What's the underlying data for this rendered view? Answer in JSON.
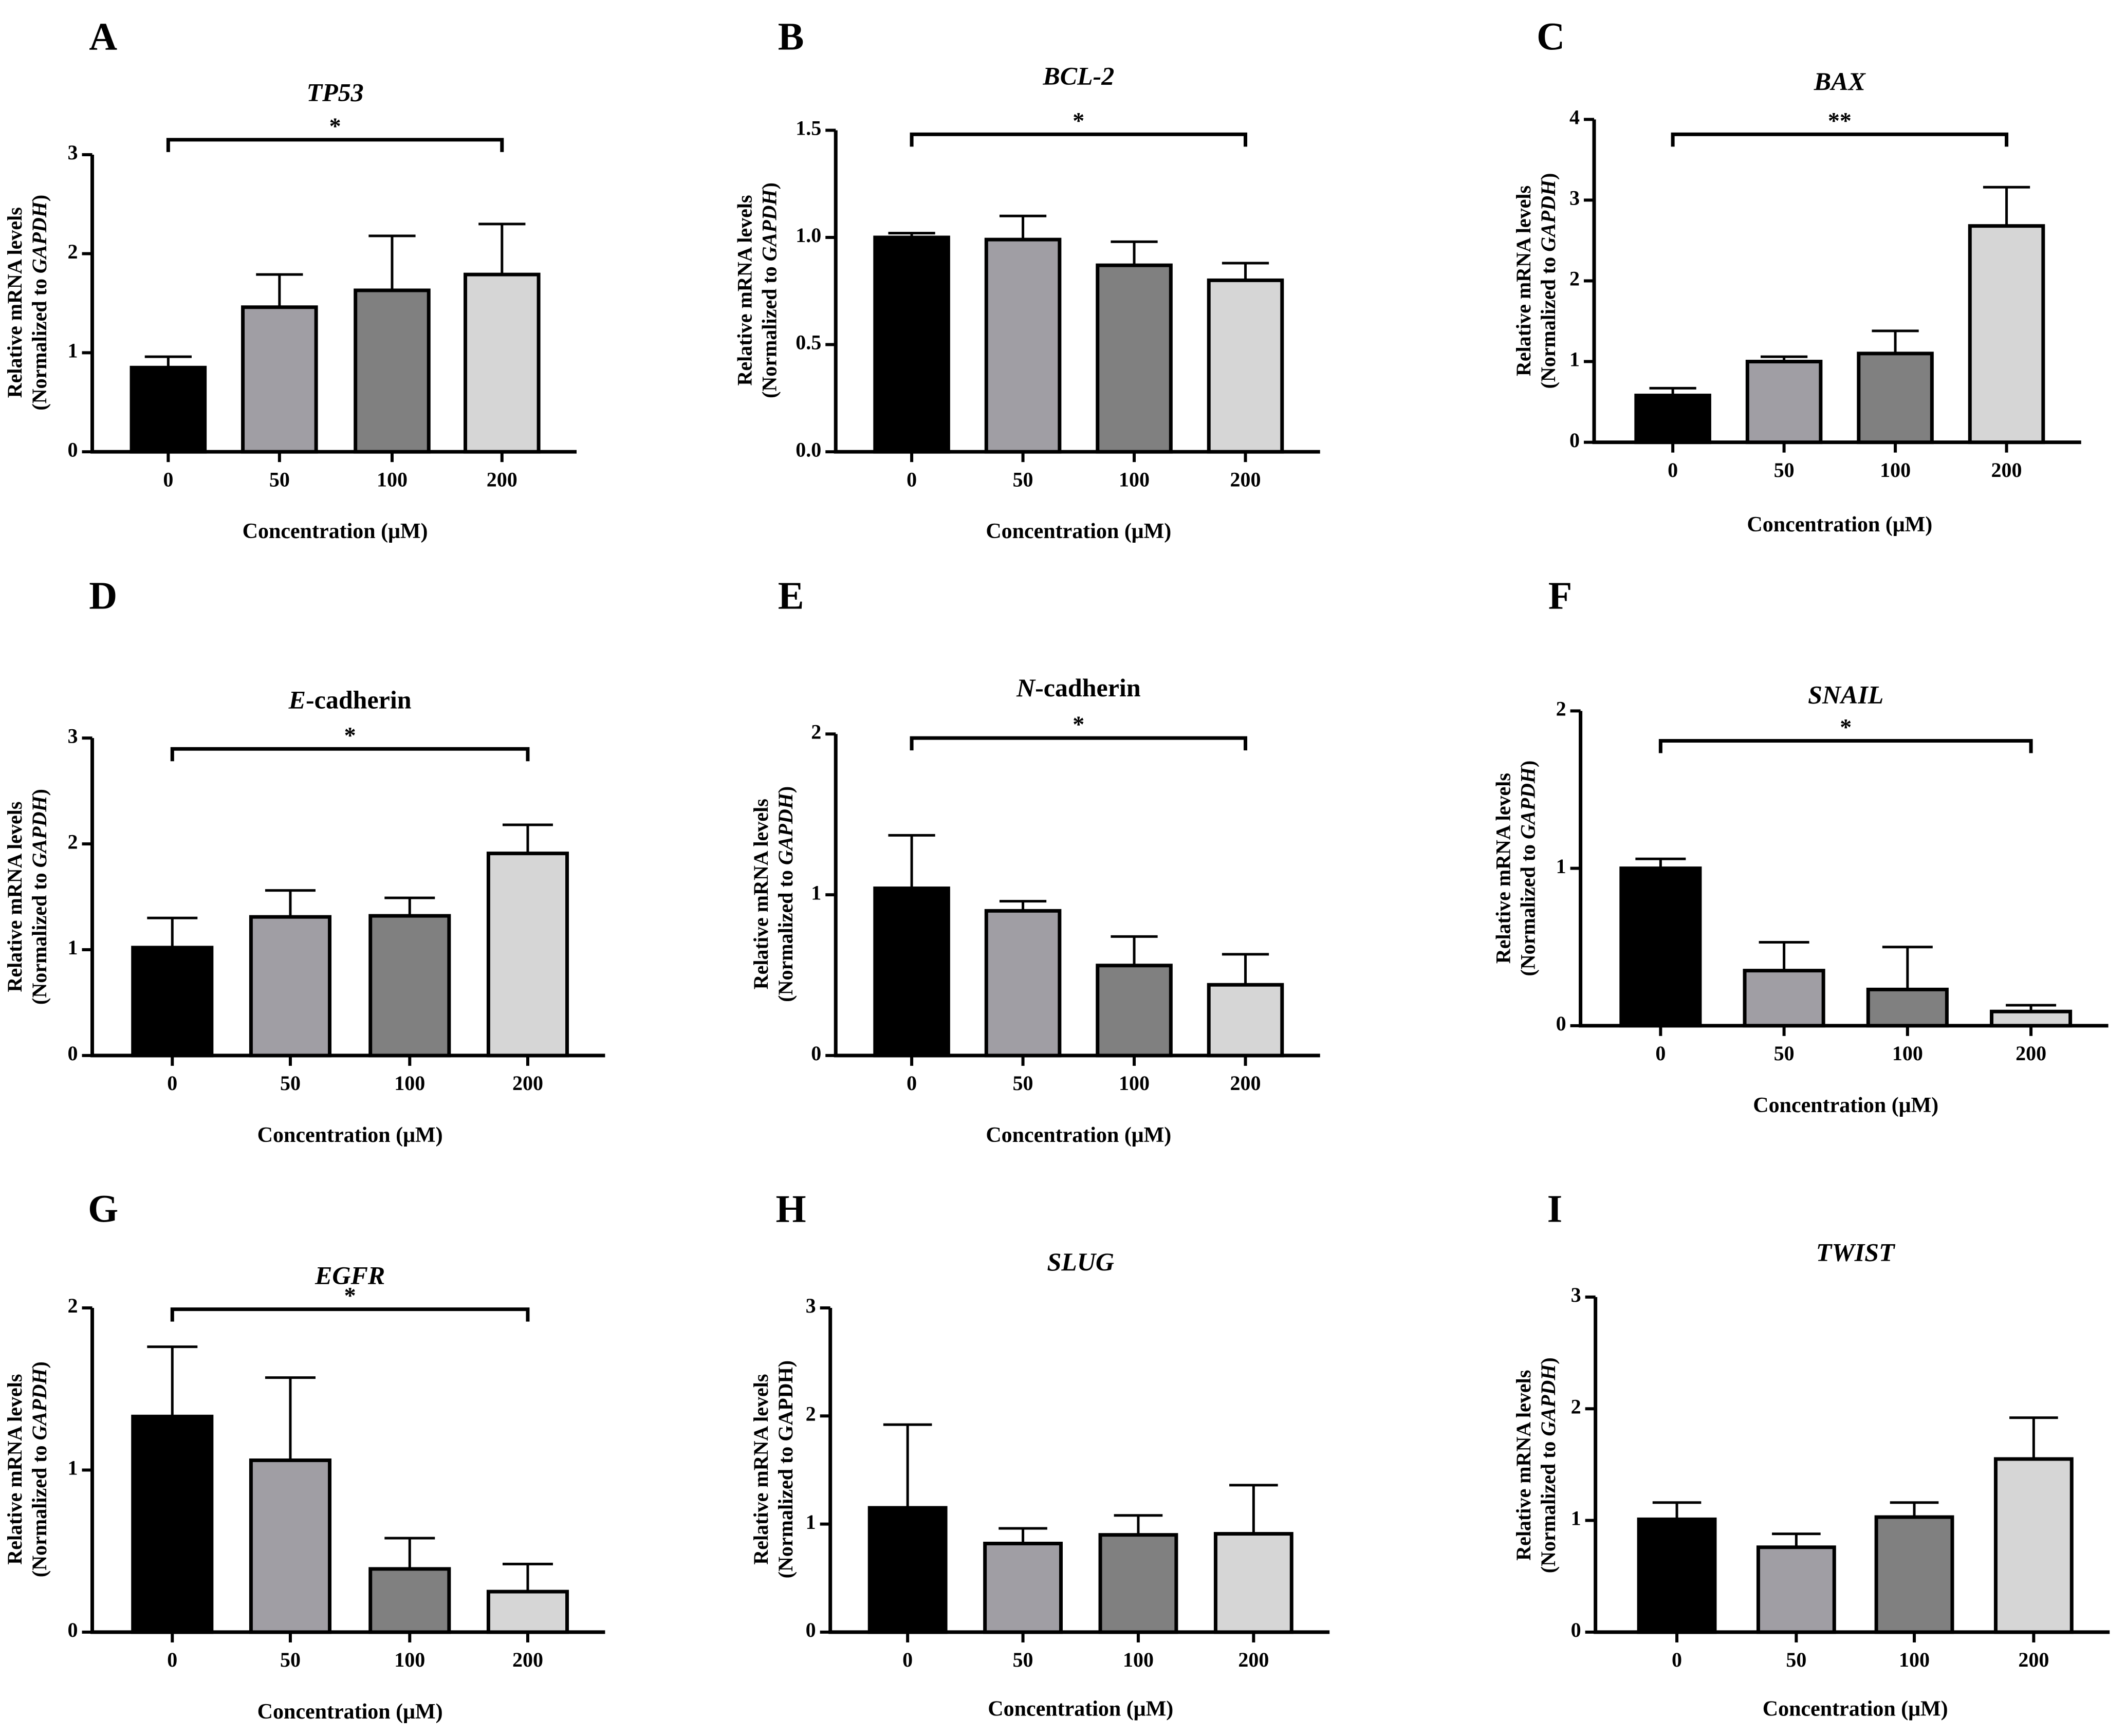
{
  "figure": {
    "axis_y_label_line1": "Relative mRNA levels",
    "x_axis_label": "Concentration (μM)",
    "bar_colors": [
      "#000000",
      "#a09ea4",
      "#808080",
      "#d6d6d6"
    ]
  },
  "chart_data": [
    {
      "type": "bar",
      "panel": "A",
      "title": "TP53",
      "title_style": "italic",
      "categories": [
        "0",
        "50",
        "100",
        "200"
      ],
      "values": [
        0.85,
        1.46,
        1.63,
        1.79
      ],
      "errors": [
        0.11,
        0.33,
        0.55,
        0.51
      ],
      "ylim": [
        0,
        3
      ],
      "yticks": [
        "0",
        "1",
        "2",
        "3"
      ],
      "ylabel_prefix": "(Normalized to ",
      "ylabel_gene": "GAPDH",
      "ylabel_gene_italic": true,
      "ylabel_suffix": ")",
      "xlabel": "Concentration (μM)",
      "significance": {
        "from": "0",
        "to": "200",
        "label": "*"
      }
    },
    {
      "type": "bar",
      "panel": "B",
      "title": "BCL-2",
      "title_style": "italic",
      "categories": [
        "0",
        "50",
        "100",
        "200"
      ],
      "values": [
        1.0,
        0.99,
        0.87,
        0.8
      ],
      "errors": [
        0.02,
        0.11,
        0.11,
        0.08
      ],
      "ylim": [
        0,
        1.5
      ],
      "yticks": [
        "0.0",
        "0.5",
        "1.0",
        "1.5"
      ],
      "ylabel_prefix": "(Normalized to ",
      "ylabel_gene": "GAPDH",
      "ylabel_gene_italic": true,
      "ylabel_suffix": ")",
      "xlabel": "Concentration (μM)",
      "significance": {
        "from": "0",
        "to": "200",
        "label": "*"
      }
    },
    {
      "type": "bar",
      "panel": "C",
      "title": "BAX",
      "title_style": "italic",
      "categories": [
        "0",
        "50",
        "100",
        "200"
      ],
      "values": [
        0.58,
        1.0,
        1.1,
        2.68
      ],
      "errors": [
        0.09,
        0.06,
        0.28,
        0.48
      ],
      "ylim": [
        0,
        4
      ],
      "yticks": [
        "0",
        "1",
        "2",
        "3",
        "4"
      ],
      "ylabel_prefix": "(Normalized to ",
      "ylabel_gene": "GAPDH",
      "ylabel_gene_italic": true,
      "ylabel_suffix": ")",
      "xlabel": "Concentration (μM)",
      "significance": {
        "from": "0",
        "to": "200",
        "label": "**"
      }
    },
    {
      "type": "bar",
      "panel": "D",
      "title": "E-cadherin",
      "title_style": "first-letter-italic",
      "categories": [
        "0",
        "50",
        "100",
        "200"
      ],
      "values": [
        1.02,
        1.31,
        1.32,
        1.91
      ],
      "errors": [
        0.28,
        0.25,
        0.17,
        0.27
      ],
      "ylim": [
        0,
        3
      ],
      "yticks": [
        "0",
        "1",
        "2",
        "3"
      ],
      "ylabel_prefix": "(Normalized to ",
      "ylabel_gene": "GAPDH",
      "ylabel_gene_italic": true,
      "ylabel_suffix": ")",
      "xlabel": "Concentration (μM)",
      "significance": {
        "from": "0",
        "to": "200",
        "label": "*"
      }
    },
    {
      "type": "bar",
      "panel": "E",
      "title": "N-cadherin",
      "title_style": "first-letter-italic",
      "categories": [
        "0",
        "50",
        "100",
        "200"
      ],
      "values": [
        1.04,
        0.9,
        0.56,
        0.44
      ],
      "errors": [
        0.33,
        0.06,
        0.18,
        0.19
      ],
      "ylim": [
        0,
        2
      ],
      "yticks": [
        "0",
        "1",
        "2"
      ],
      "ylabel_prefix": "(Normalized to ",
      "ylabel_gene": "GAPDH",
      "ylabel_gene_italic": true,
      "ylabel_suffix": ")",
      "xlabel": "Concentration (μM)",
      "significance": {
        "from": "0",
        "to": "200",
        "label": "*"
      }
    },
    {
      "type": "bar",
      "panel": "F",
      "title": "SNAIL",
      "title_style": "italic",
      "categories": [
        "0",
        "50",
        "100",
        "200"
      ],
      "values": [
        1.0,
        0.35,
        0.23,
        0.09
      ],
      "errors": [
        0.06,
        0.18,
        0.27,
        0.04
      ],
      "ylim": [
        0,
        2
      ],
      "yticks": [
        "0",
        "1",
        "2"
      ],
      "ylabel_prefix": "(Normalized to ",
      "ylabel_gene": "GAPDH",
      "ylabel_gene_italic": true,
      "ylabel_suffix": ")",
      "xlabel": "Concentration (μM)",
      "significance": {
        "from": "0",
        "to": "200",
        "label": "*"
      }
    },
    {
      "type": "bar",
      "panel": "G",
      "title": "EGFR",
      "title_style": "italic",
      "categories": [
        "0",
        "50",
        "100",
        "200"
      ],
      "values": [
        1.33,
        1.06,
        0.39,
        0.25
      ],
      "errors": [
        0.43,
        0.51,
        0.19,
        0.17
      ],
      "ylim": [
        0,
        2
      ],
      "yticks": [
        "0",
        "1",
        "2"
      ],
      "ylabel_prefix": "(Normalized to ",
      "ylabel_gene": "GAPDH",
      "ylabel_gene_italic": true,
      "ylabel_suffix": ")",
      "xlabel": "Concentration (μM)",
      "significance": {
        "from": "0",
        "to": "200",
        "label": "*"
      }
    },
    {
      "type": "bar",
      "panel": "H",
      "title": "SLUG",
      "title_style": "italic",
      "categories": [
        "0",
        "50",
        "100",
        "200"
      ],
      "values": [
        1.15,
        0.82,
        0.9,
        0.91
      ],
      "errors": [
        0.77,
        0.14,
        0.18,
        0.45
      ],
      "ylim": [
        0,
        3
      ],
      "yticks": [
        "0",
        "1",
        "2",
        "3"
      ],
      "ylabel_prefix": "(Normalized to GAPDH)",
      "ylabel_gene": "",
      "ylabel_gene_italic": false,
      "ylabel_suffix": "",
      "xlabel": "Concentration (μM)",
      "significance": null
    },
    {
      "type": "bar",
      "panel": "I",
      "title": "TWIST",
      "title_style": "italic",
      "categories": [
        "0",
        "50",
        "100",
        "200"
      ],
      "values": [
        1.01,
        0.76,
        1.03,
        1.55
      ],
      "errors": [
        0.15,
        0.12,
        0.13,
        0.37
      ],
      "ylim": [
        0,
        3
      ],
      "yticks": [
        "0",
        "1",
        "2",
        "3"
      ],
      "ylabel_prefix": "(Normalized to ",
      "ylabel_gene": "GAPDH",
      "ylabel_gene_italic": true,
      "ylabel_suffix": ")",
      "xlabel": "Concentration (μM)",
      "significance": null
    }
  ]
}
